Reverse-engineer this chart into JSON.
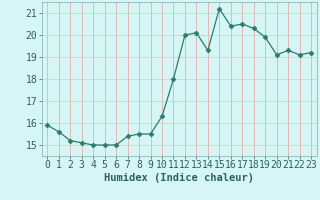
{
  "x": [
    0,
    1,
    2,
    3,
    4,
    5,
    6,
    7,
    8,
    9,
    10,
    11,
    12,
    13,
    14,
    15,
    16,
    17,
    18,
    19,
    20,
    21,
    22,
    23
  ],
  "y": [
    15.9,
    15.6,
    15.2,
    15.1,
    15.0,
    15.0,
    15.0,
    15.4,
    15.5,
    15.5,
    16.3,
    18.0,
    20.0,
    20.1,
    19.3,
    21.2,
    20.4,
    20.5,
    20.3,
    19.9,
    19.1,
    19.3,
    19.1,
    19.2
  ],
  "line_color": "#2e7b6e",
  "marker": "D",
  "marker_size": 2.5,
  "bg_color": "#d6f5f5",
  "grid_color_v": "#e8a0a0",
  "grid_color_h": "#e8c0c0",
  "xlabel": "Humidex (Indice chaleur)",
  "xlim": [
    -0.5,
    23.5
  ],
  "ylim": [
    14.5,
    21.5
  ],
  "yticks": [
    15,
    16,
    17,
    18,
    19,
    20,
    21
  ],
  "xticks": [
    0,
    1,
    2,
    3,
    4,
    5,
    6,
    7,
    8,
    9,
    10,
    11,
    12,
    13,
    14,
    15,
    16,
    17,
    18,
    19,
    20,
    21,
    22,
    23
  ],
  "xlabel_fontsize": 7.5,
  "tick_fontsize": 7.0,
  "tick_color": "#2e6060"
}
